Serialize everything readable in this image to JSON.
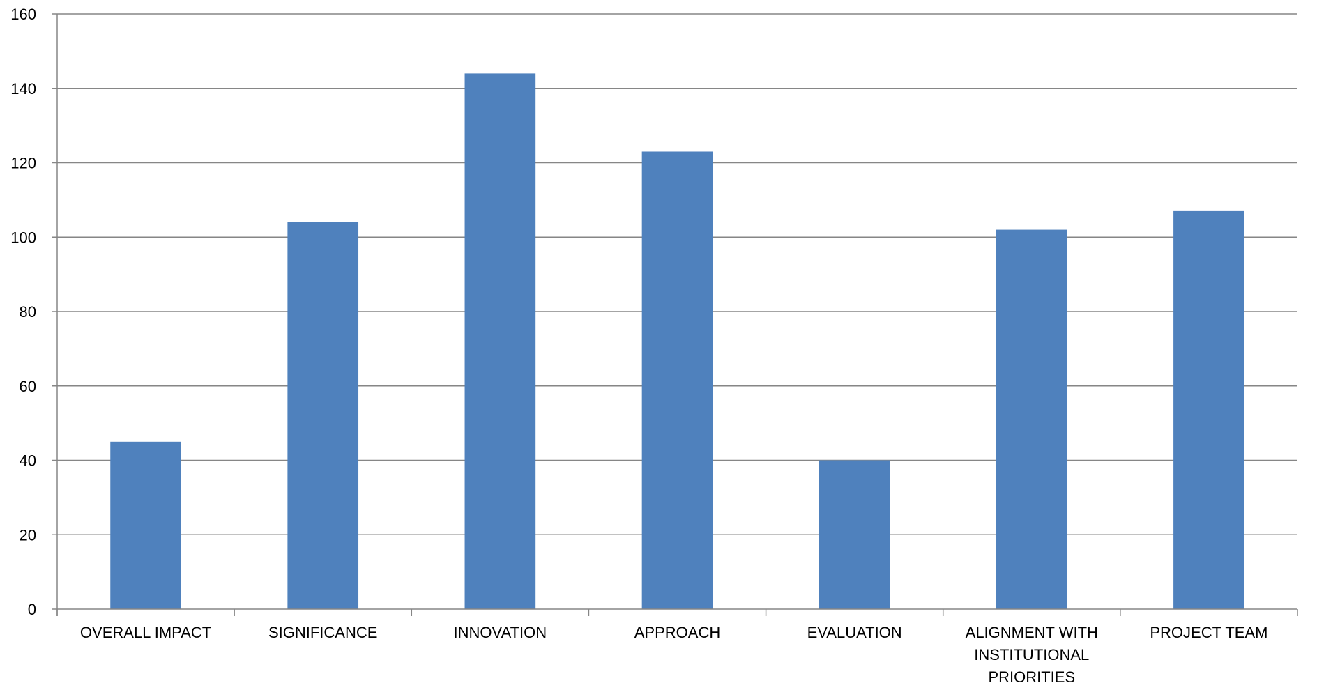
{
  "chart_data": {
    "type": "bar",
    "title": "",
    "xlabel": "",
    "ylabel": "",
    "categories": [
      "OVERALL IMPACT",
      "SIGNIFICANCE",
      "INNOVATION",
      "APPROACH",
      "EVALUATION",
      "ALIGNMENT WITH INSTITUTIONAL PRIORITIES",
      "PROJECT TEAM"
    ],
    "values": [
      45,
      104,
      144,
      123,
      40,
      102,
      107
    ],
    "ylim": [
      0,
      160
    ],
    "yticks": [
      0,
      20,
      40,
      60,
      80,
      100,
      120,
      140,
      160
    ],
    "grid": true,
    "legend": "none",
    "bar_color": "#4F81BD",
    "gridline_color": "#868686",
    "axis_color": "#868686"
  }
}
